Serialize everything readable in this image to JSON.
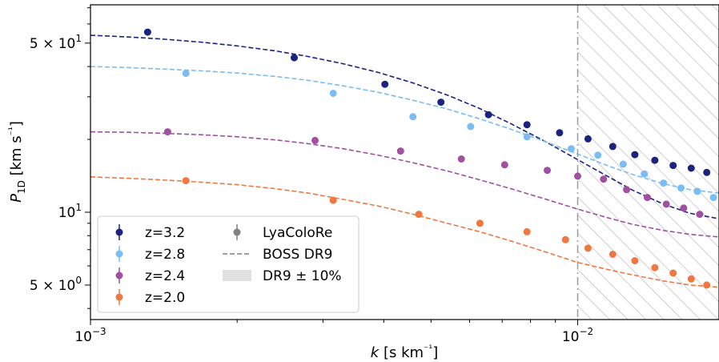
{
  "chart_data": {
    "type": "scatter",
    "title": "",
    "xlabel": "k [s km⁻¹]",
    "ylabel": "P1D [km s⁻¹]",
    "xscale": "log",
    "yscale": "log",
    "xlim": [
      0.001,
      0.0195
    ],
    "ylim": [
      3.6,
      72
    ],
    "x_ticks": [
      {
        "value": 0.001,
        "base": "10",
        "exp": "−3"
      },
      {
        "value": 0.01,
        "base": "10",
        "exp": "−2"
      }
    ],
    "y_ticks": [
      {
        "value": 5,
        "mant": "5 × 10",
        "exp": "0"
      },
      {
        "value": 10,
        "mant": "10",
        "exp": "1"
      },
      {
        "value": 50,
        "mant": "5 × 10",
        "exp": "1"
      }
    ],
    "cutoff_k": 0.01,
    "hatched_region": [
      0.01,
      0.0195
    ],
    "series": [
      {
        "name": "z=3.2",
        "color": "#1a237e",
        "points": [
          [
            0.00131,
            55.5
          ],
          [
            0.00262,
            43.5
          ],
          [
            0.00402,
            33.8
          ],
          [
            0.00524,
            28.5
          ],
          [
            0.00656,
            25.3
          ],
          [
            0.00787,
            23.0
          ],
          [
            0.00918,
            21.3
          ],
          [
            0.0105,
            20.1
          ],
          [
            0.0118,
            18.7
          ],
          [
            0.0131,
            17.3
          ],
          [
            0.0144,
            16.4
          ],
          [
            0.0157,
            15.6
          ],
          [
            0.0171,
            15.2
          ],
          [
            0.0184,
            14.6
          ]
        ],
        "fit": [
          [
            0.001,
            53.9
          ],
          [
            0.0012,
            53.0
          ],
          [
            0.0014,
            52.0
          ],
          [
            0.0017,
            50.4
          ],
          [
            0.002,
            48.7
          ],
          [
            0.0024,
            46.4
          ],
          [
            0.0028,
            44.0
          ],
          [
            0.0033,
            41.1
          ],
          [
            0.0039,
            37.8
          ],
          [
            0.0046,
            34.2
          ],
          [
            0.0054,
            30.5
          ],
          [
            0.0063,
            26.8
          ],
          [
            0.0073,
            23.2
          ],
          [
            0.0085,
            19.8
          ],
          [
            0.01,
            16.5
          ],
          [
            0.0115,
            14.1
          ],
          [
            0.013,
            12.3
          ],
          [
            0.015,
            10.8
          ],
          [
            0.017,
            9.9
          ],
          [
            0.0195,
            9.4
          ]
        ]
      },
      {
        "name": "z=2.8",
        "color": "#7bbcf2",
        "points": [
          [
            0.00157,
            37.5
          ],
          [
            0.00315,
            31.0
          ],
          [
            0.00459,
            24.8
          ],
          [
            0.00603,
            22.6
          ],
          [
            0.00787,
            20.5
          ],
          [
            0.0097,
            18.3
          ],
          [
            0.011,
            17.2
          ],
          [
            0.0124,
            15.8
          ],
          [
            0.0137,
            14.4
          ],
          [
            0.015,
            13.2
          ],
          [
            0.0163,
            12.6
          ],
          [
            0.0176,
            12.2
          ],
          [
            0.019,
            11.5
          ]
        ],
        "fit": [
          [
            0.001,
            40.0
          ],
          [
            0.0012,
            39.6
          ],
          [
            0.0014,
            39.1
          ],
          [
            0.0017,
            38.4
          ],
          [
            0.002,
            37.6
          ],
          [
            0.0024,
            36.4
          ],
          [
            0.0028,
            35.1
          ],
          [
            0.0033,
            33.3
          ],
          [
            0.0039,
            31.3
          ],
          [
            0.0046,
            29.0
          ],
          [
            0.0054,
            26.7
          ],
          [
            0.0063,
            24.3
          ],
          [
            0.0073,
            22.0
          ],
          [
            0.0085,
            19.7
          ],
          [
            0.01,
            17.4
          ],
          [
            0.0115,
            15.6
          ],
          [
            0.013,
            14.3
          ],
          [
            0.015,
            13.1
          ],
          [
            0.017,
            12.4
          ],
          [
            0.0195,
            12.0
          ]
        ]
      },
      {
        "name": "z=2.4",
        "color": "#a050a0",
        "points": [
          [
            0.00144,
            21.5
          ],
          [
            0.00289,
            19.8
          ],
          [
            0.00433,
            17.9
          ],
          [
            0.00577,
            16.6
          ],
          [
            0.00708,
            15.7
          ],
          [
            0.00866,
            14.9
          ],
          [
            0.01,
            14.1
          ],
          [
            0.0113,
            13.7
          ],
          [
            0.0126,
            12.4
          ],
          [
            0.0139,
            11.5
          ],
          [
            0.0152,
            10.8
          ],
          [
            0.0165,
            10.4
          ],
          [
            0.0178,
            9.8
          ]
        ],
        "fit": [
          [
            0.001,
            21.5
          ],
          [
            0.0012,
            21.4
          ],
          [
            0.0014,
            21.2
          ],
          [
            0.0017,
            20.9
          ],
          [
            0.002,
            20.5
          ],
          [
            0.0024,
            19.9
          ],
          [
            0.0028,
            19.2
          ],
          [
            0.0033,
            18.3
          ],
          [
            0.0039,
            17.2
          ],
          [
            0.0046,
            16.0
          ],
          [
            0.0054,
            14.8
          ],
          [
            0.0063,
            13.6
          ],
          [
            0.0073,
            12.5
          ],
          [
            0.0085,
            11.4
          ],
          [
            0.01,
            10.3
          ],
          [
            0.0115,
            9.5
          ],
          [
            0.013,
            8.9
          ],
          [
            0.015,
            8.4
          ],
          [
            0.017,
            8.1
          ],
          [
            0.0195,
            7.9
          ]
        ]
      },
      {
        "name": "z=2.0",
        "color": "#f07840",
        "points": [
          [
            0.00157,
            13.5
          ],
          [
            0.00315,
            11.2
          ],
          [
            0.00472,
            9.8
          ],
          [
            0.0063,
            9.0
          ],
          [
            0.00787,
            8.3
          ],
          [
            0.00944,
            7.7
          ],
          [
            0.0105,
            7.1
          ],
          [
            0.0118,
            6.7
          ],
          [
            0.0131,
            6.3
          ],
          [
            0.0144,
            5.9
          ],
          [
            0.0157,
            5.6
          ],
          [
            0.0171,
            5.3
          ],
          [
            0.0184,
            5.0
          ]
        ],
        "fit": [
          [
            0.001,
            14.0
          ],
          [
            0.0012,
            13.8
          ],
          [
            0.0014,
            13.6
          ],
          [
            0.0017,
            13.3
          ],
          [
            0.002,
            13.0
          ],
          [
            0.0024,
            12.5
          ],
          [
            0.0028,
            12.0
          ],
          [
            0.0033,
            11.3
          ],
          [
            0.0039,
            10.6
          ],
          [
            0.0046,
            9.8
          ],
          [
            0.0054,
            9.0
          ],
          [
            0.0063,
            8.3
          ],
          [
            0.0073,
            7.6
          ],
          [
            0.0085,
            6.9
          ],
          [
            0.01,
            6.2
          ],
          [
            0.0115,
            5.8
          ],
          [
            0.013,
            5.5
          ],
          [
            0.015,
            5.2
          ],
          [
            0.017,
            5.0
          ],
          [
            0.0195,
            4.9
          ]
        ]
      }
    ],
    "legend": {
      "placement": "lower-left",
      "series_entries": [
        "z=3.2",
        "z=2.8",
        "z=2.4",
        "z=2.0"
      ],
      "style_entries": [
        {
          "label": "LyaColoRe",
          "kind": "marker",
          "color": "#808080"
        },
        {
          "label": "BOSS DR9",
          "kind": "dashed",
          "color": "#808080"
        },
        {
          "label": "DR9 ± 10%",
          "kind": "band",
          "color": "#e0e0e0"
        }
      ]
    }
  }
}
